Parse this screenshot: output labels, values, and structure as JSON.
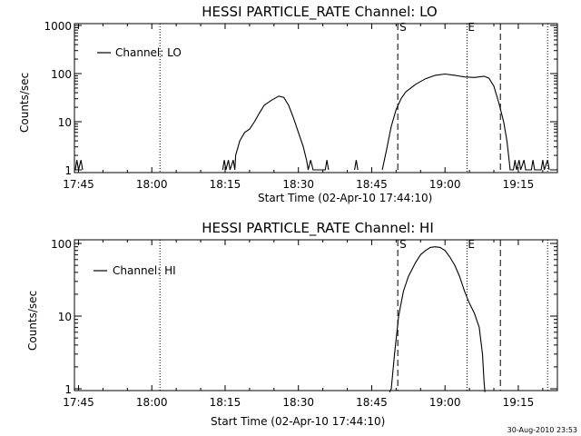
{
  "footer": {
    "timestamp": "30-Aug-2010 23:53"
  },
  "chart_data": [
    {
      "type": "line",
      "title": "HESSI PARTICLE_RATE Channel: LO",
      "xlabel": "Start Time (02-Apr-10 17:44:10)",
      "ylabel": "Counts/sec",
      "legend": {
        "label": "Channel: LO",
        "placement": "top-left"
      },
      "y_scale": "log",
      "x_unit": "time of day",
      "xlim": [
        "17:44:10",
        "19:23:00"
      ],
      "ylim": [
        1,
        1000
      ],
      "x_ticks": [
        "17:45",
        "18:00",
        "18:15",
        "18:30",
        "18:45",
        "19:00",
        "19:15"
      ],
      "y_ticks": [
        "1",
        "10",
        "100",
        "1000"
      ],
      "markers": [
        {
          "label": "S",
          "time": "18:50:20",
          "style": "dashed"
        },
        {
          "label": "E",
          "time": "19:04:30",
          "style": "dotted"
        }
      ],
      "extra_lines": [
        {
          "time": "18:01:40",
          "style": "dotted"
        },
        {
          "time": "19:11:20",
          "style": "dashed"
        },
        {
          "time": "19:21:00",
          "style": "dotted"
        }
      ],
      "series": [
        {
          "name": "Channel: LO",
          "points": [
            [
              "17:44:20",
              1
            ],
            [
              "17:44:40",
              1.6
            ],
            [
              "17:45:00",
              1
            ],
            [
              "17:45:30",
              1.6
            ],
            [
              "17:45:50",
              1
            ],
            [
              "18:14:30",
              1
            ],
            [
              "18:14:50",
              1.6
            ],
            [
              "18:15:10",
              1
            ],
            [
              "18:15:40",
              1.6
            ],
            [
              "18:16:00",
              1
            ],
            [
              "18:16:40",
              1.6
            ],
            [
              "18:17:00",
              1
            ],
            [
              "18:17:10",
              2
            ],
            [
              "18:18:00",
              4
            ],
            [
              "18:19:00",
              6
            ],
            [
              "18:20:00",
              7
            ],
            [
              "18:21:00",
              10
            ],
            [
              "18:22:00",
              15
            ],
            [
              "18:23:00",
              22
            ],
            [
              "18:24:30",
              28
            ],
            [
              "18:26:00",
              34
            ],
            [
              "18:27:00",
              32
            ],
            [
              "18:28:00",
              22
            ],
            [
              "18:29:00",
              12
            ],
            [
              "18:30:00",
              6
            ],
            [
              "18:31:00",
              3
            ],
            [
              "18:31:40",
              1.6
            ],
            [
              "18:32:00",
              1
            ],
            [
              "18:32:30",
              1.6
            ],
            [
              "18:33:00",
              1
            ],
            [
              "18:35:30",
              1
            ],
            [
              "18:35:50",
              1.6
            ],
            [
              "18:36:10",
              1
            ],
            [
              "18:41:30",
              1
            ],
            [
              "18:41:50",
              1.6
            ],
            [
              "18:42:10",
              1
            ],
            [
              "18:47:10",
              1
            ],
            [
              "18:48:00",
              2.5
            ],
            [
              "18:49:00",
              8
            ],
            [
              "18:50:00",
              18
            ],
            [
              "18:51:00",
              30
            ],
            [
              "18:52:00",
              42
            ],
            [
              "18:54:00",
              60
            ],
            [
              "18:56:00",
              78
            ],
            [
              "18:58:00",
              92
            ],
            [
              "19:00:00",
              98
            ],
            [
              "19:02:00",
              92
            ],
            [
              "19:04:00",
              85
            ],
            [
              "19:06:00",
              83
            ],
            [
              "19:08:00",
              88
            ],
            [
              "19:09:00",
              80
            ],
            [
              "19:10:00",
              55
            ],
            [
              "19:11:00",
              25
            ],
            [
              "19:12:00",
              10
            ],
            [
              "19:12:40",
              4
            ],
            [
              "19:13:00",
              2
            ],
            [
              "19:13:20",
              1
            ],
            [
              "19:14:00",
              1
            ],
            [
              "19:14:20",
              1.6
            ],
            [
              "19:14:40",
              1
            ],
            [
              "19:15:10",
              1.6
            ],
            [
              "19:15:30",
              1
            ],
            [
              "19:16:10",
              1.6
            ],
            [
              "19:16:30",
              1
            ],
            [
              "19:17:40",
              1
            ],
            [
              "19:18:00",
              1.6
            ],
            [
              "19:18:20",
              1
            ],
            [
              "19:19:40",
              1
            ],
            [
              "19:20:00",
              1.6
            ],
            [
              "19:20:20",
              1
            ],
            [
              "19:21:00",
              1.6
            ],
            [
              "19:21:20",
              1
            ]
          ]
        }
      ]
    },
    {
      "type": "line",
      "title": "HESSI PARTICLE_RATE Channel: HI",
      "xlabel": "Start Time (02-Apr-10 17:44:10)",
      "ylabel": "Counts/sec",
      "legend": {
        "label": "Channel: HI",
        "placement": "top-left"
      },
      "y_scale": "log",
      "x_unit": "time of day",
      "xlim": [
        "17:44:10",
        "19:23:00"
      ],
      "ylim": [
        1,
        100
      ],
      "x_ticks": [
        "17:45",
        "18:00",
        "18:15",
        "18:30",
        "18:45",
        "19:00",
        "19:15"
      ],
      "y_ticks": [
        "1",
        "10",
        "100"
      ],
      "markers": [
        {
          "label": "S",
          "time": "18:50:20",
          "style": "dashed"
        },
        {
          "label": "E",
          "time": "19:04:30",
          "style": "dotted"
        }
      ],
      "extra_lines": [
        {
          "time": "18:01:40",
          "style": "dotted"
        },
        {
          "time": "19:11:20",
          "style": "dashed"
        },
        {
          "time": "19:21:00",
          "style": "dotted"
        }
      ],
      "series": [
        {
          "name": "Channel: HI",
          "points": [
            [
              "18:48:40",
              0.9
            ],
            [
              "18:49:00",
              1
            ],
            [
              "18:49:40",
              3
            ],
            [
              "18:50:30",
              10
            ],
            [
              "18:51:30",
              22
            ],
            [
              "18:52:30",
              35
            ],
            [
              "18:54:00",
              55
            ],
            [
              "18:55:00",
              70
            ],
            [
              "18:56:00",
              80
            ],
            [
              "18:57:00",
              88
            ],
            [
              "18:58:00",
              90
            ],
            [
              "18:59:00",
              88
            ],
            [
              "19:00:00",
              80
            ],
            [
              "19:01:00",
              65
            ],
            [
              "19:02:00",
              50
            ],
            [
              "19:03:00",
              35
            ],
            [
              "19:04:00",
              22
            ],
            [
              "19:05:00",
              15
            ],
            [
              "19:06:00",
              11
            ],
            [
              "19:07:00",
              7
            ],
            [
              "19:07:40",
              3
            ],
            [
              "19:08:00",
              1.2
            ],
            [
              "19:08:10",
              0.9
            ]
          ]
        }
      ]
    }
  ]
}
